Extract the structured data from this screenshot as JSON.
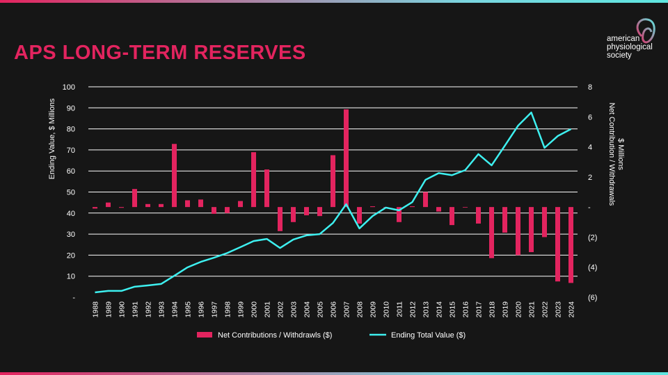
{
  "title": "APS LONG-TERM RESERVES",
  "logo": {
    "line1": "american",
    "line2": "physiological",
    "line3": "society"
  },
  "colors": {
    "accent": "#e3245f",
    "line": "#3ef0f0",
    "background": "#161616"
  },
  "chart_data": {
    "type": "bar+line",
    "title": "APS LONG-TERM RESERVES",
    "categories": [
      "1988",
      "1989",
      "1990",
      "1991",
      "1992",
      "1993",
      "1994",
      "1995",
      "1996",
      "1997",
      "1998",
      "1999",
      "2000",
      "2001",
      "2002",
      "2003",
      "2004",
      "2005",
      "2006",
      "2007",
      "2008",
      "2009",
      "2010",
      "2011",
      "2012",
      "2013",
      "2014",
      "2015",
      "2016",
      "2017",
      "2018",
      "2019",
      "2020",
      "2021",
      "2022",
      "2023",
      "2024"
    ],
    "series": [
      {
        "name": "Net Contributions / Withdrawls ($)",
        "type": "bar",
        "axis": "right",
        "values": [
          -0.1,
          0.3,
          -0.05,
          1.2,
          0.2,
          0.2,
          4.2,
          0.45,
          0.5,
          -0.45,
          -0.4,
          0.4,
          3.65,
          2.5,
          -1.6,
          -1.0,
          -0.55,
          -0.6,
          3.45,
          6.5,
          -1.1,
          0.05,
          0,
          -1.0,
          0.05,
          1.0,
          -0.3,
          -1.2,
          0,
          -1.1,
          -3.4,
          -1.7,
          -3.2,
          -3.0,
          -2.0,
          -4.95,
          -5.05
        ]
      },
      {
        "name": "Ending Total Value ($)",
        "type": "line",
        "axis": "left",
        "values": [
          2.3,
          3,
          3,
          5,
          5.6,
          6.3,
          10.2,
          14.2,
          16.8,
          18.8,
          21,
          23.8,
          26.7,
          27.7,
          23.4,
          27.4,
          29.4,
          30,
          35.3,
          44.2,
          32.7,
          38.6,
          42.6,
          41.3,
          45.2,
          55.8,
          59,
          58,
          60.4,
          68,
          62.7,
          72,
          81.5,
          87.8,
          71,
          76.6,
          79.9
        ]
      }
    ],
    "ylabel": "Ending Value, $ Millions",
    "ylabel_right": [
      "Net Contribution / Withdrawals",
      "$ Millions"
    ],
    "ylim": [
      0,
      100
    ],
    "ylim_right": [
      -6,
      8
    ],
    "yticks": [
      "-",
      "10",
      "20",
      "30",
      "40",
      "50",
      "60",
      "70",
      "80",
      "90",
      "100"
    ],
    "yticks_right": [
      "(6)",
      "(4)",
      "(2)",
      "-",
      "2",
      "4",
      "6",
      "8"
    ],
    "grid": true,
    "legend": "bottom"
  }
}
